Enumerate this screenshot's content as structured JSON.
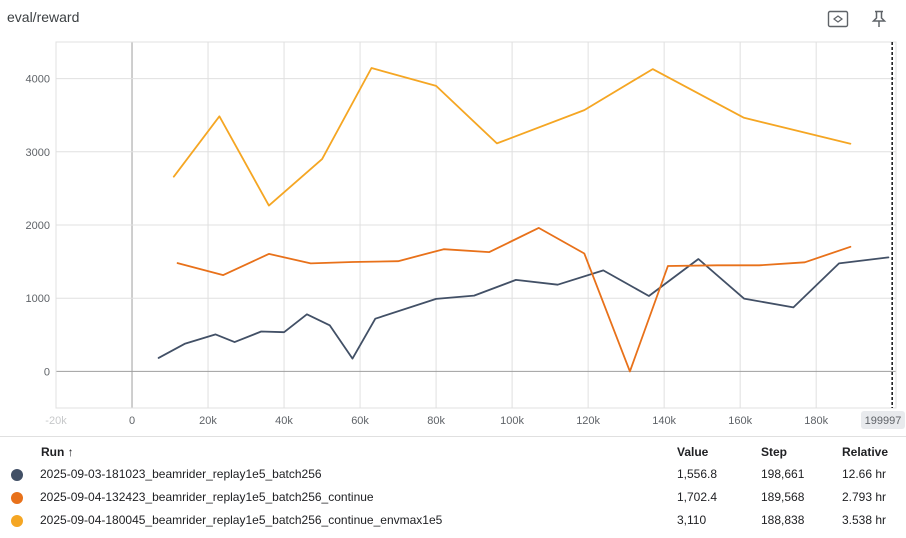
{
  "title": "eval/reward",
  "icons": {
    "fit": "fit-domain-icon",
    "pin": "pin-icon"
  },
  "colors": {
    "run1": "#425066",
    "run2": "#e8711a",
    "run3": "#f5a623",
    "grid": "#e0e0e0",
    "zero_axis": "#9e9e9e"
  },
  "chart_data": {
    "type": "line",
    "title": "eval/reward",
    "xlabel": "",
    "ylabel": "",
    "xlim": [
      -20000,
      201000
    ],
    "ylim": [
      -500,
      4500
    ],
    "x_ticks": [
      -20000,
      0,
      20000,
      40000,
      60000,
      80000,
      100000,
      120000,
      140000,
      160000,
      180000
    ],
    "x_tick_labels": [
      "-20k",
      "0",
      "20k",
      "40k",
      "60k",
      "80k",
      "100k",
      "120k",
      "140k",
      "160k",
      "180k"
    ],
    "y_ticks": [
      0,
      1000,
      2000,
      3000,
      4000
    ],
    "y_tick_labels": [
      "0",
      "1000",
      "2000",
      "3000",
      "4000"
    ],
    "grid": true,
    "cursor_step": 199997,
    "cursor_label": "199997",
    "series": [
      {
        "name": "2025-09-03-181023_beamrider_replay1e5_batch256",
        "color": "#425066",
        "x": [
          7000,
          14000,
          22000,
          27000,
          34000,
          40000,
          46000,
          52000,
          58000,
          64000,
          80000,
          90000,
          101000,
          112000,
          124000,
          136000,
          149000,
          161000,
          174000,
          186000,
          199000
        ],
        "y": [
          185,
          380,
          505,
          400,
          545,
          535,
          780,
          630,
          175,
          720,
          990,
          1035,
          1250,
          1185,
          1380,
          1030,
          1535,
          995,
          875,
          1475,
          1557
        ]
      },
      {
        "name": "2025-09-04-132423_beamrider_replay1e5_batch256_continue",
        "color": "#e8711a",
        "x": [
          12000,
          24000,
          36000,
          47000,
          58000,
          70000,
          82000,
          94000,
          107000,
          119000,
          131000,
          141000,
          154000,
          165000,
          177000,
          189000
        ],
        "y": [
          1480,
          1315,
          1605,
          1475,
          1495,
          1505,
          1670,
          1630,
          1960,
          1610,
          0,
          1440,
          1450,
          1450,
          1490,
          1702
        ]
      },
      {
        "name": "2025-09-04-180045_beamrider_replay1e5_batch256_continue_envmax1e5",
        "color": "#f5a623",
        "x": [
          11000,
          23000,
          36000,
          50000,
          63000,
          80000,
          96000,
          119000,
          137000,
          161000,
          189000
        ],
        "y": [
          2660,
          3485,
          2265,
          2900,
          4145,
          3900,
          3115,
          3570,
          4130,
          3465,
          3110
        ]
      }
    ]
  },
  "table": {
    "header": {
      "run": "Run ↑",
      "value": "Value",
      "step": "Step",
      "relative": "Relative"
    },
    "rows": [
      {
        "name": "2025-09-03-181023_beamrider_replay1e5_batch256",
        "value": "1,556.8",
        "step": "198,661",
        "relative": "12.66 hr",
        "color": "#425066"
      },
      {
        "name": "2025-09-04-132423_beamrider_replay1e5_batch256_continue",
        "value": "1,702.4",
        "step": "189,568",
        "relative": "2.793 hr",
        "color": "#e8711a"
      },
      {
        "name": "2025-09-04-180045_beamrider_replay1e5_batch256_continue_envmax1e5",
        "value": "3,110",
        "step": "188,838",
        "relative": "3.538 hr",
        "color": "#f5a623"
      }
    ]
  }
}
